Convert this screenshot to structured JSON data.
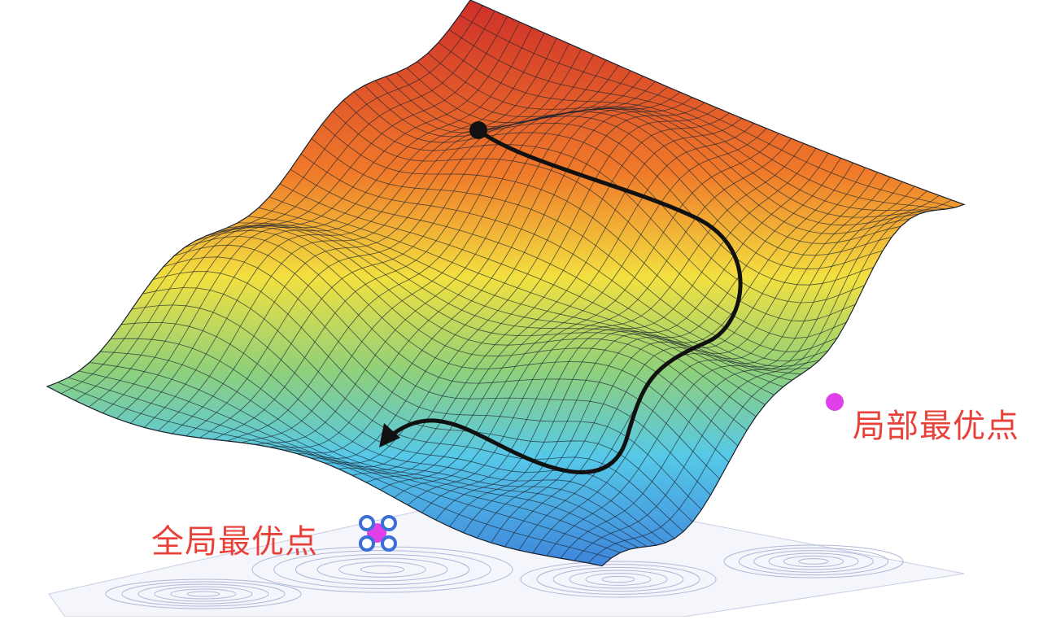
{
  "labels": {
    "local_optimum": "局部最优点",
    "global_optimum": "全局最优点"
  },
  "colors": {
    "label_text": "#e8413a",
    "marker_magenta": "#e040e8",
    "handle_blue": "#3a6fd8",
    "path": "#111111",
    "mesh_line": "#1c2430",
    "surface_top": "#cf2f2a",
    "surface_orange": "#f07a2a",
    "surface_yellow": "#f2e040",
    "surface_green": "#8fd07a",
    "surface_cyan": "#56c8e8",
    "surface_blue": "#3a78d8",
    "contour_lines": "#b0b8d8"
  },
  "icons": {
    "start_marker": "start-point-icon",
    "local_marker": "local-optimum-marker-icon",
    "global_marker": "global-optimum-marker-icon",
    "path_arrow": "descent-arrow-icon"
  }
}
